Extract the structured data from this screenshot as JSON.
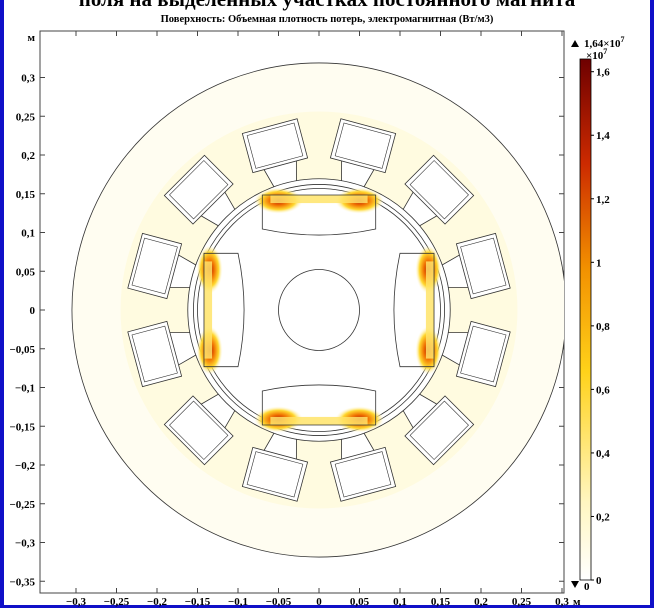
{
  "caption": "поля на выделенных участках постоянного магнита",
  "chart_data": {
    "type": "heatmap",
    "title": "Поверхность: Объемная плотность потерь, электромагнитная (Вт/м3)",
    "xlabel": "м",
    "ylabel": "м",
    "xlim": [
      -0.33,
      0.33
    ],
    "ylim": [
      -0.36,
      0.34
    ],
    "x_ticks": [
      "−0,3",
      "−0,25",
      "−0,2",
      "−0,15",
      "−0,1",
      "−0,05",
      "0",
      "0,05",
      "0,1",
      "0,15",
      "0,2",
      "0,25",
      "0,3"
    ],
    "y_ticks": [
      "0,3",
      "0,25",
      "0,2",
      "0,15",
      "0,1",
      "0,05",
      "0",
      "−0,05",
      "−0,1",
      "−0,15",
      "−0,2",
      "−0,25",
      "−0,3",
      "−0,35"
    ],
    "colorbar": {
      "max_label": "1,64×10",
      "max_exp": "7",
      "scale_label": "×10",
      "scale_exp": "7",
      "min_label": "0",
      "ticks": [
        "1,6",
        "1,4",
        "1,2",
        "1",
        "0,8",
        "0,6",
        "0,4",
        "0,2",
        "0"
      ],
      "range": [
        0,
        16400000
      ],
      "colors": [
        "#ffffff",
        "#fff8c8",
        "#ffe040",
        "#f5a000",
        "#d83a00",
        "#7a0000"
      ]
    },
    "magnet_hotspots": [
      {
        "side": "top",
        "x": 0.0,
        "y": 0.135
      },
      {
        "side": "bottom",
        "x": 0.0,
        "y": -0.135
      },
      {
        "side": "left",
        "x": -0.135,
        "y": 0.0
      },
      {
        "side": "right",
        "x": 0.135,
        "y": 0.0
      }
    ]
  }
}
